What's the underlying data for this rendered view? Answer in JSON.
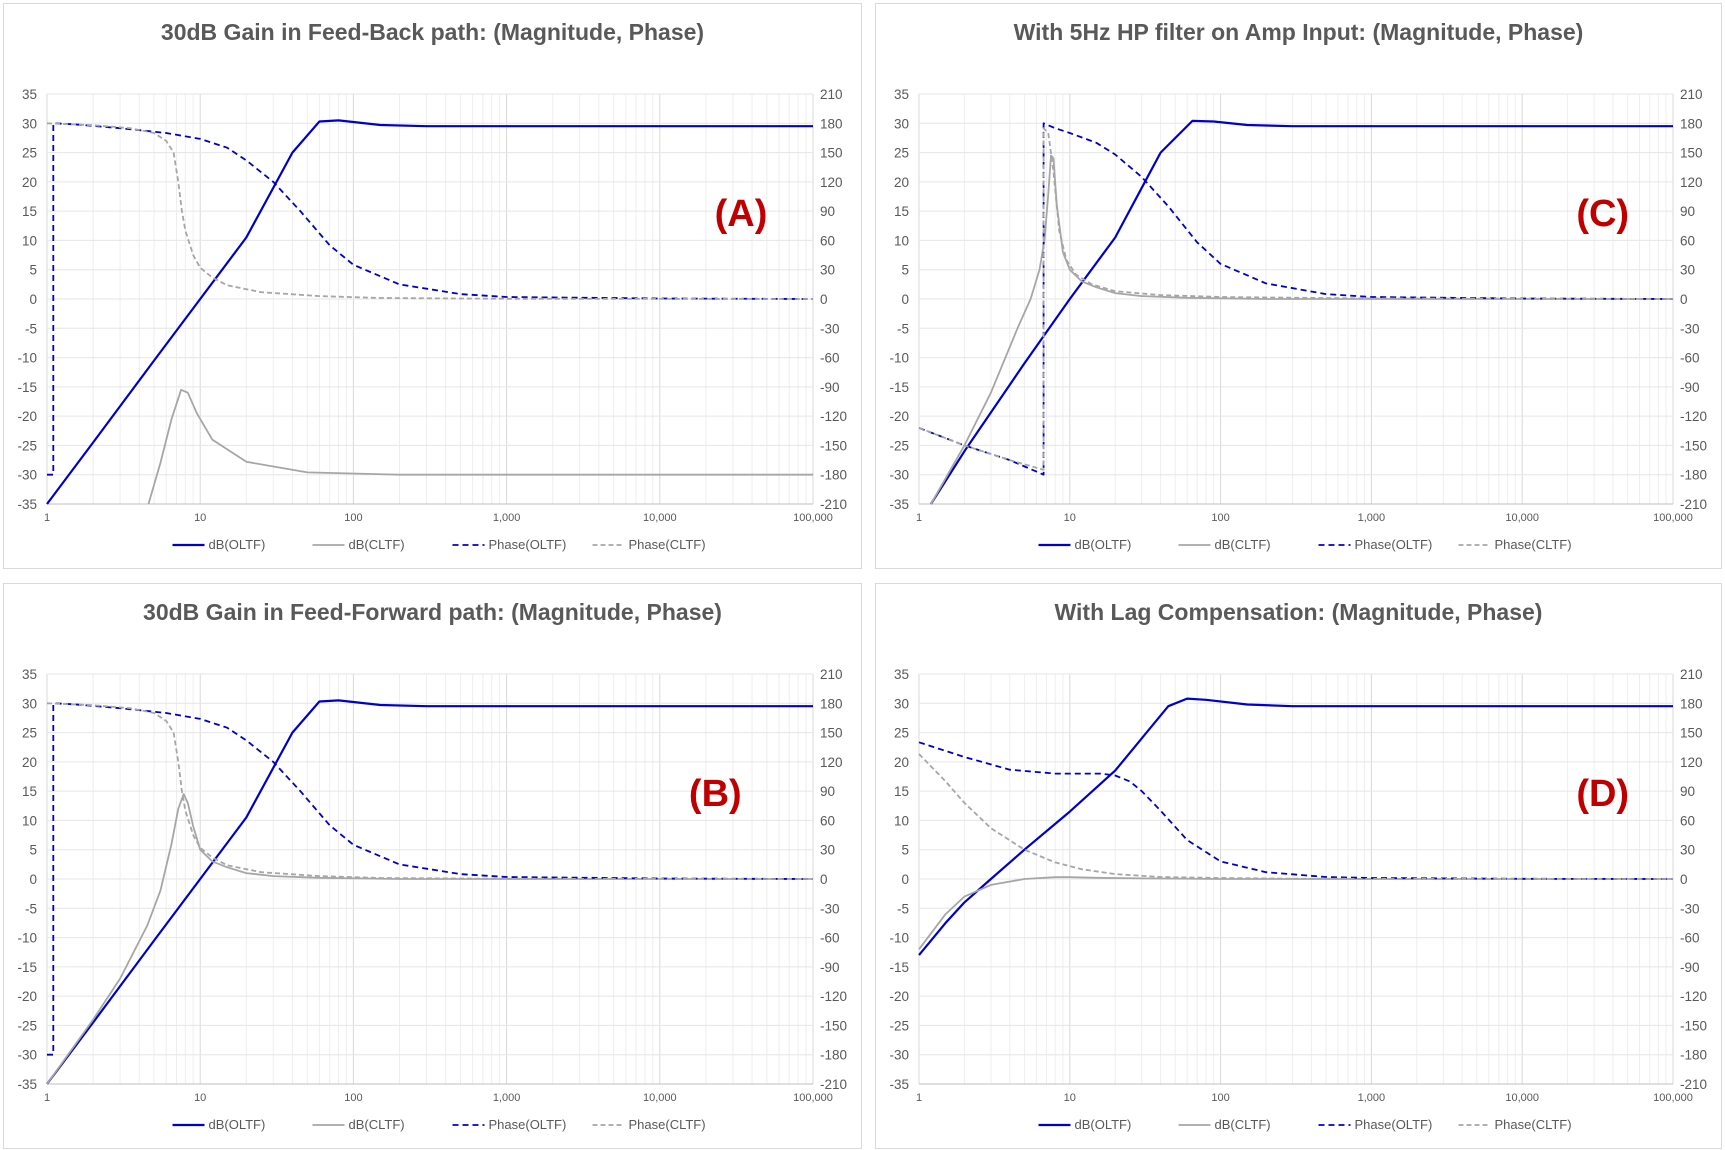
{
  "chart_data": [
    {
      "type": "line",
      "title": "30dB Gain in Feed-Back path: (Magnitude, Phase)",
      "annotation": "(A)",
      "x_scale": "log",
      "xlim": [
        1,
        100000
      ],
      "ylim": [
        -35,
        35
      ],
      "y2lim": [
        -210,
        210
      ],
      "x_ticks": [
        "1",
        "10",
        "100",
        "1,000",
        "10,000",
        "100,000"
      ],
      "y_ticks": [
        "35",
        "30",
        "25",
        "20",
        "15",
        "10",
        "5",
        "0",
        "-5",
        "-10",
        "-15",
        "-20",
        "-25",
        "-30",
        "-35"
      ],
      "y2_ticks": [
        "210",
        "180",
        "150",
        "120",
        "90",
        "60",
        "30",
        "0",
        "-30",
        "-60",
        "-90",
        "-120",
        "-150",
        "-180",
        "-210"
      ],
      "grid": true,
      "legend_position": "bottom",
      "legend": [
        "dB(OLTF)",
        "dB(CLTF)",
        "Phase(OLTF)",
        "Phase(CLTF)"
      ],
      "series": [
        {
          "name": "dB(OLTF)",
          "axis": "left",
          "color": "#0000cc",
          "dash": "solid",
          "x": [
            1,
            2,
            5,
            10,
            20,
            40,
            60,
            80,
            150,
            300,
            1000,
            100000
          ],
          "y": [
            -35,
            -24.5,
            -10.5,
            0,
            10.5,
            25,
            30.3,
            30.5,
            29.7,
            29.5,
            29.5,
            29.5
          ]
        },
        {
          "name": "dB(CLTF)",
          "axis": "left",
          "color": "#a6a6a6",
          "dash": "solid",
          "x": [
            4.6,
            5.5,
            6.5,
            7.5,
            8.3,
            9.5,
            12,
            20,
            50,
            200,
            100000
          ],
          "y": [
            -35,
            -28,
            -20.5,
            -15.5,
            -16,
            -19.5,
            -24,
            -27.8,
            -29.6,
            -30,
            -30
          ]
        },
        {
          "name": "Phase(OLTF)",
          "axis": "right",
          "color": "#0000cc",
          "dash": "dash",
          "x": [
            1,
            1.1,
            1.1,
            1.5,
            3,
            6,
            10,
            15,
            20,
            30,
            45,
            70,
            100,
            200,
            500,
            1000,
            10000,
            100000
          ],
          "y": [
            -180,
            -180,
            180,
            179,
            175,
            170,
            164,
            155,
            142,
            120,
            90,
            55,
            35,
            15,
            5,
            2,
            0.5,
            0
          ]
        },
        {
          "name": "Phase(CLTF)",
          "axis": "right",
          "color": "#a6a6a6",
          "dash": "dash",
          "x": [
            1,
            2,
            3.5,
            5,
            6,
            6.7,
            7.2,
            7.6,
            8,
            9,
            10,
            12,
            15,
            25,
            60,
            150,
            1000,
            100000
          ],
          "y": [
            180,
            178,
            175,
            170,
            162,
            150,
            120,
            90,
            70,
            45,
            32,
            22,
            14,
            7,
            3,
            1,
            0.2,
            0
          ]
        }
      ]
    },
    {
      "type": "line",
      "title": "With 5Hz HP filter on Amp Input: (Magnitude, Phase)",
      "annotation": "(C)",
      "x_scale": "log",
      "xlim": [
        1,
        100000
      ],
      "ylim": [
        -35,
        35
      ],
      "y2lim": [
        -210,
        210
      ],
      "x_ticks": [
        "1",
        "10",
        "100",
        "1,000",
        "10,000",
        "100,000"
      ],
      "y_ticks": [
        "35",
        "30",
        "25",
        "20",
        "15",
        "10",
        "5",
        "0",
        "-5",
        "-10",
        "-15",
        "-20",
        "-25",
        "-30",
        "-35"
      ],
      "y2_ticks": [
        "210",
        "180",
        "150",
        "120",
        "90",
        "60",
        "30",
        "0",
        "-30",
        "-60",
        "-90",
        "-120",
        "-150",
        "-180",
        "-210"
      ],
      "grid": true,
      "legend_position": "bottom",
      "legend": [
        "dB(OLTF)",
        "dB(CLTF)",
        "Phase(OLTF)",
        "Phase(CLTF)"
      ],
      "series": [
        {
          "name": "dB(OLTF)",
          "axis": "left",
          "color": "#0000cc",
          "dash": "solid",
          "x": [
            1.2,
            2,
            5,
            10,
            20,
            40,
            65,
            90,
            150,
            300,
            1000,
            100000
          ],
          "y": [
            -35,
            -26,
            -11,
            0,
            10.5,
            25,
            30.4,
            30.3,
            29.7,
            29.5,
            29.5,
            29.5
          ]
        },
        {
          "name": "dB(CLTF)",
          "axis": "left",
          "color": "#a6a6a6",
          "dash": "solid",
          "x": [
            1.2,
            2,
            3,
            4.5,
            5.5,
            6.3,
            6.8,
            7.2,
            7.5,
            7.8,
            8.2,
            9,
            10,
            12,
            15,
            20,
            30,
            60,
            200,
            100000
          ],
          "y": [
            -35,
            -25,
            -16,
            -5,
            0,
            5,
            10,
            18,
            24.5,
            24,
            16,
            8,
            5,
            3,
            2,
            1,
            0.5,
            0.2,
            0,
            0
          ]
        },
        {
          "name": "Phase(OLTF)",
          "axis": "right",
          "color": "#0000cc",
          "dash": "dash",
          "x": [
            1,
            2,
            4,
            6.7,
            6.7,
            8,
            10,
            15,
            20,
            30,
            45,
            70,
            100,
            200,
            500,
            1000,
            10000,
            100000
          ],
          "y": [
            -132,
            -150,
            -165,
            -180,
            180,
            175,
            170,
            160,
            148,
            125,
            95,
            58,
            36,
            16,
            5,
            2,
            0.5,
            0
          ]
        },
        {
          "name": "Phase(CLTF)",
          "axis": "right",
          "color": "#a6a6a6",
          "dash": "dash",
          "x": [
            1,
            2,
            4,
            6.7,
            6.7,
            7.2,
            7.8,
            8.5,
            9.5,
            11,
            14,
            20,
            40,
            100,
            1000,
            100000
          ],
          "y": [
            -132,
            -150,
            -165,
            -175,
            175,
            170,
            130,
            70,
            40,
            25,
            15,
            8,
            4,
            2,
            0.5,
            0
          ]
        }
      ]
    },
    {
      "type": "line",
      "title": "30dB Gain in Feed-Forward path: (Magnitude, Phase)",
      "annotation": "(B)",
      "x_scale": "log",
      "xlim": [
        1,
        100000
      ],
      "ylim": [
        -35,
        35
      ],
      "y2lim": [
        -210,
        210
      ],
      "x_ticks": [
        "1",
        "10",
        "100",
        "1,000",
        "10,000",
        "100,000"
      ],
      "y_ticks": [
        "35",
        "30",
        "25",
        "20",
        "15",
        "10",
        "5",
        "0",
        "-5",
        "-10",
        "-15",
        "-20",
        "-25",
        "-30",
        "-35"
      ],
      "y2_ticks": [
        "210",
        "180",
        "150",
        "120",
        "90",
        "60",
        "30",
        "0",
        "-30",
        "-60",
        "-90",
        "-120",
        "-150",
        "-180",
        "-210"
      ],
      "grid": true,
      "legend_position": "bottom",
      "legend": [
        "dB(OLTF)",
        "dB(CLTF)",
        "Phase(OLTF)",
        "Phase(CLTF)"
      ],
      "series": [
        {
          "name": "dB(OLTF)",
          "axis": "left",
          "color": "#0000cc",
          "dash": "solid",
          "x": [
            1,
            2,
            5,
            10,
            20,
            40,
            60,
            80,
            150,
            300,
            1000,
            100000
          ],
          "y": [
            -35,
            -24.5,
            -10.5,
            0,
            10.5,
            25,
            30.3,
            30.5,
            29.7,
            29.5,
            29.5,
            29.5
          ]
        },
        {
          "name": "dB(CLTF)",
          "axis": "left",
          "color": "#a6a6a6",
          "dash": "solid",
          "x": [
            1,
            2,
            3,
            4.5,
            5.5,
            6.5,
            7.2,
            7.8,
            8.3,
            9,
            10,
            12,
            15,
            20,
            30,
            60,
            200,
            100000
          ],
          "y": [
            -35,
            -24,
            -17,
            -8,
            -2,
            6,
            12,
            14.5,
            13,
            9,
            5,
            3,
            2,
            1,
            0.5,
            0.2,
            0,
            0
          ]
        },
        {
          "name": "Phase(OLTF)",
          "axis": "right",
          "color": "#0000cc",
          "dash": "dash",
          "x": [
            1,
            1.1,
            1.1,
            1.5,
            3,
            6,
            10,
            15,
            20,
            30,
            45,
            70,
            100,
            200,
            500,
            1000,
            10000,
            100000
          ],
          "y": [
            -180,
            -180,
            180,
            179,
            175,
            170,
            164,
            155,
            142,
            120,
            90,
            55,
            35,
            15,
            5,
            2,
            0.5,
            0
          ]
        },
        {
          "name": "Phase(CLTF)",
          "axis": "right",
          "color": "#a6a6a6",
          "dash": "dash",
          "x": [
            1,
            2,
            3.5,
            5,
            6,
            6.7,
            7.2,
            7.6,
            8,
            9,
            10,
            12,
            15,
            25,
            60,
            150,
            1000,
            100000
          ],
          "y": [
            180,
            178,
            175,
            170,
            162,
            150,
            120,
            90,
            70,
            45,
            32,
            22,
            14,
            7,
            3,
            1,
            0.2,
            0
          ]
        }
      ]
    },
    {
      "type": "line",
      "title": "With Lag Compensation: (Magnitude, Phase)",
      "annotation": "(D)",
      "x_scale": "log",
      "xlim": [
        1,
        100000
      ],
      "ylim": [
        -35,
        35
      ],
      "y2lim": [
        -210,
        210
      ],
      "x_ticks": [
        "1",
        "10",
        "100",
        "1,000",
        "10,000",
        "100,000"
      ],
      "y_ticks": [
        "35",
        "30",
        "25",
        "20",
        "15",
        "10",
        "5",
        "0",
        "-5",
        "-10",
        "-15",
        "-20",
        "-25",
        "-30",
        "-35"
      ],
      "y2_ticks": [
        "210",
        "180",
        "150",
        "120",
        "90",
        "60",
        "30",
        "0",
        "-30",
        "-60",
        "-90",
        "-120",
        "-150",
        "-180",
        "-210"
      ],
      "grid": true,
      "legend_position": "bottom",
      "legend": [
        "dB(OLTF)",
        "dB(CLTF)",
        "Phase(OLTF)",
        "Phase(CLTF)"
      ],
      "series": [
        {
          "name": "dB(OLTF)",
          "axis": "left",
          "color": "#0000cc",
          "dash": "solid",
          "x": [
            1,
            1.5,
            2,
            3,
            5,
            10,
            20,
            30,
            45,
            60,
            80,
            150,
            300,
            1000,
            100000
          ],
          "y": [
            -13,
            -7.5,
            -4,
            0,
            5,
            11.5,
            18.5,
            24,
            29.5,
            30.8,
            30.6,
            29.8,
            29.5,
            29.5,
            29.5
          ]
        },
        {
          "name": "dB(CLTF)",
          "axis": "left",
          "color": "#a6a6a6",
          "dash": "solid",
          "x": [
            1,
            1.5,
            2,
            3,
            5,
            8,
            10,
            15,
            30,
            100,
            100000
          ],
          "y": [
            -12,
            -6,
            -3,
            -1,
            0,
            0.3,
            0.3,
            0.2,
            0.1,
            0,
            0
          ]
        },
        {
          "name": "Phase(OLTF)",
          "axis": "right",
          "color": "#0000cc",
          "dash": "dash",
          "x": [
            1,
            2,
            4,
            8,
            12,
            16,
            20,
            25,
            30,
            40,
            60,
            100,
            200,
            500,
            1000,
            10000,
            100000
          ],
          "y": [
            140,
            125,
            112,
            108,
            108,
            108,
            106,
            100,
            90,
            70,
            40,
            18,
            7,
            2,
            1,
            0.2,
            0
          ]
        },
        {
          "name": "Phase(CLTF)",
          "axis": "right",
          "color": "#a6a6a6",
          "dash": "dash",
          "x": [
            1,
            1.5,
            2,
            3,
            5,
            8,
            12,
            20,
            40,
            100,
            300,
            1000,
            100000
          ],
          "y": [
            128,
            100,
            78,
            52,
            30,
            17,
            10,
            5,
            2,
            1,
            0.3,
            0.1,
            0
          ]
        }
      ]
    }
  ]
}
